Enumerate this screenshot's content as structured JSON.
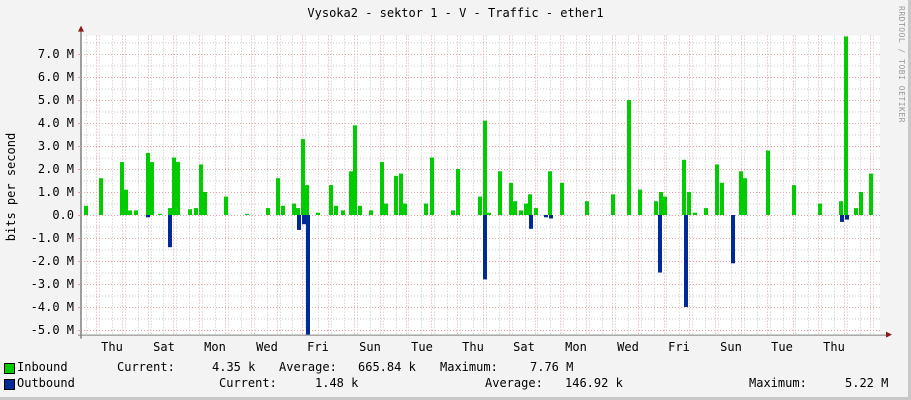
{
  "title": "Vysoka2 - sektor 1 - V - Traffic - ether1",
  "watermark": "RRDTOOL / TOBI OETIKER",
  "colors": {
    "inbound": "#00cc00",
    "outbound": "#002a97",
    "grid_major": "#e8a0a0",
    "grid_minor": "#c8c8c8",
    "axis": "#808080",
    "arrow": "#8b1a1a"
  },
  "chart_data": {
    "type": "area",
    "title": "Vysoka2 - sektor 1 - V - Traffic - ether1",
    "xlabel": "",
    "ylabel": "bits per second",
    "ylim": [
      -5.2,
      7.8
    ],
    "y_ticks": [
      "7.0 M",
      "6.0 M",
      "5.0 M",
      "4.0 M",
      "3.0 M",
      "2.0 M",
      "1.0 M",
      "0.0",
      "-1.0 M",
      "-2.0 M",
      "-3.0 M",
      "-4.0 M",
      "-5.0 M"
    ],
    "x_ticks": [
      "Thu",
      "Sat",
      "Mon",
      "Wed",
      "Fri",
      "Sun",
      "Tue",
      "Thu",
      "Sat",
      "Mon",
      "Wed",
      "Fri",
      "Sun",
      "Tue",
      "Thu"
    ],
    "grid": true,
    "legend_position": "bottom",
    "series": [
      {
        "name": "Inbound",
        "color": "#00cc00",
        "points": [
          [
            86,
            0.4
          ],
          [
            101,
            1.6
          ],
          [
            122,
            2.3
          ],
          [
            126,
            1.1
          ],
          [
            130,
            0.2
          ],
          [
            136,
            0.2
          ],
          [
            148,
            2.7
          ],
          [
            152,
            2.3
          ],
          [
            160,
            0.05
          ],
          [
            170,
            0.3
          ],
          [
            174,
            2.5
          ],
          [
            178,
            2.3
          ],
          [
            190,
            0.25
          ],
          [
            196,
            0.3
          ],
          [
            201,
            2.2
          ],
          [
            205,
            1.0
          ],
          [
            226,
            0.8
          ],
          [
            247,
            0.05
          ],
          [
            268,
            0.3
          ],
          [
            278,
            1.6
          ],
          [
            283,
            0.4
          ],
          [
            294,
            0.5
          ],
          [
            298,
            0.3
          ],
          [
            303,
            3.3
          ],
          [
            307,
            1.3
          ],
          [
            318,
            0.1
          ],
          [
            331,
            1.3
          ],
          [
            336,
            0.4
          ],
          [
            343,
            0.2
          ],
          [
            351,
            1.9
          ],
          [
            355,
            3.9
          ],
          [
            360,
            0.4
          ],
          [
            371,
            0.2
          ],
          [
            382,
            2.3
          ],
          [
            386,
            0.5
          ],
          [
            396,
            1.7
          ],
          [
            401,
            1.8
          ],
          [
            405,
            0.5
          ],
          [
            426,
            0.5
          ],
          [
            432,
            2.5
          ],
          [
            453,
            0.2
          ],
          [
            458,
            2.0
          ],
          [
            480,
            0.8
          ],
          [
            485,
            4.1
          ],
          [
            489,
            0.1
          ],
          [
            500,
            1.9
          ],
          [
            511,
            1.4
          ],
          [
            515,
            0.6
          ],
          [
            521,
            0.2
          ],
          [
            526,
            0.5
          ],
          [
            530,
            0.9
          ],
          [
            536,
            0.3
          ],
          [
            550,
            1.9
          ],
          [
            562,
            1.4
          ],
          [
            587,
            0.6
          ],
          [
            613,
            0.9
          ],
          [
            629,
            5.0
          ],
          [
            640,
            1.1
          ],
          [
            656,
            0.6
          ],
          [
            661,
            1.0
          ],
          [
            665,
            0.8
          ],
          [
            684,
            2.4
          ],
          [
            689,
            1.0
          ],
          [
            695,
            0.1
          ],
          [
            706,
            0.3
          ],
          [
            717,
            2.2
          ],
          [
            722,
            1.4
          ],
          [
            741,
            1.9
          ],
          [
            745,
            1.6
          ],
          [
            768,
            2.8
          ],
          [
            794,
            1.3
          ],
          [
            820,
            0.5
          ],
          [
            841,
            0.6
          ],
          [
            846,
            7.76
          ],
          [
            856,
            0.3
          ],
          [
            861,
            1.0
          ],
          [
            871,
            1.8
          ]
        ]
      },
      {
        "name": "Outbound",
        "color": "#002a97",
        "points": [
          [
            148,
            -0.1
          ],
          [
            170,
            -1.4
          ],
          [
            299,
            -0.65
          ],
          [
            304,
            -0.4
          ],
          [
            308,
            -5.2
          ],
          [
            485,
            -2.8
          ],
          [
            531,
            -0.6
          ],
          [
            546,
            -0.1
          ],
          [
            551,
            -0.15
          ],
          [
            660,
            -2.5
          ],
          [
            686,
            -4.0
          ],
          [
            733,
            -2.1
          ],
          [
            842,
            -0.3
          ],
          [
            847,
            -0.2
          ]
        ]
      }
    ],
    "stats": {
      "inbound": {
        "current": "4.35 k",
        "average": "665.84 k",
        "maximum": "7.76 M"
      },
      "outbound": {
        "current": "1.48 k",
        "average": "146.92 k",
        "maximum": "5.22 M"
      }
    }
  },
  "legend": {
    "inbound_label": "Inbound",
    "outbound_label": "Outbound",
    "current_label": "Current:",
    "average_label": "Average:",
    "maximum_label": "Maximum:",
    "inbound_current": "4.35 k",
    "inbound_average": "665.84 k",
    "inbound_maximum": "7.76 M",
    "outbound_current": "1.48 k",
    "outbound_average": "146.92 k",
    "outbound_maximum": "5.22 M"
  }
}
